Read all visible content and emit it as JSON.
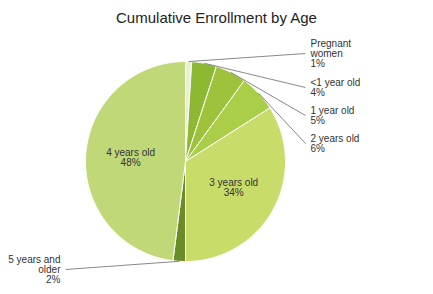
{
  "chart_data": {
    "type": "pie",
    "title": "Cumulative Enrollment by Age",
    "categories": [
      "Pregnant\nwomen",
      "<1 year old",
      "1 year old",
      "2 years old",
      "3 years old",
      "5 years and\nolder",
      "4 years old"
    ],
    "values": [
      1,
      4,
      5,
      6,
      34,
      2,
      48
    ],
    "value_labels": [
      "1%",
      "4%",
      "5%",
      "6%",
      "34%",
      "2%",
      "48%"
    ],
    "colors": [
      "#e8efd4",
      "#8db832",
      "#9ec23c",
      "#aace48",
      "#c8dc6a",
      "#6a8c28",
      "#c0d878"
    ],
    "data_labels": true
  }
}
